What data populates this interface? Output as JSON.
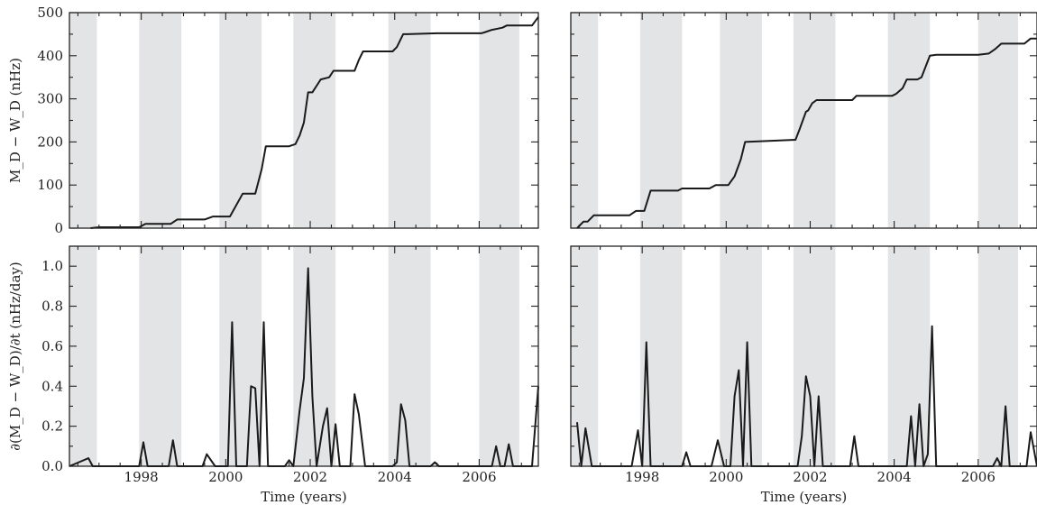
{
  "colors": {
    "band": "#e3e4e6",
    "line": "#1a1a1a",
    "frame": "#222222"
  },
  "chart_data": [
    {
      "id": "top-left",
      "type": "line",
      "xlim": [
        1996.3,
        2007.4
      ],
      "ylim": [
        0,
        500
      ],
      "xticks": [
        1998,
        2000,
        2002,
        2004,
        2006
      ],
      "show_xtick_labels": false,
      "yticks": [
        0,
        100,
        200,
        300,
        400,
        500
      ],
      "ytick_labels": [
        "0",
        "100",
        "200",
        "300",
        "400",
        "500"
      ],
      "show_ytick_labels": true,
      "xlabel": "",
      "ylabel": "M_D − W_D (nHz)",
      "bands": [
        [
          1996.3,
          1996.95
        ],
        [
          1997.95,
          1998.95
        ],
        [
          1999.85,
          2000.85
        ],
        [
          2001.6,
          2002.6
        ],
        [
          2003.85,
          2004.85
        ],
        [
          2006.0,
          2006.95
        ]
      ],
      "series": [
        {
          "x": [
            1996.8,
            1997.0,
            1997.95,
            1998.1,
            1998.7,
            1998.85,
            1999.5,
            1999.7,
            2000.05,
            2000.1,
            2000.4,
            2000.5,
            2000.7,
            2000.85,
            2000.95,
            2001.5,
            2001.65,
            2001.75,
            2001.85,
            2001.95,
            2002.05,
            2002.25,
            2002.45,
            2002.55,
            2002.65,
            2003.05,
            2003.15,
            2003.25,
            2003.95,
            2004.05,
            2004.2,
            2004.3,
            2005.0,
            2006.05,
            2006.15,
            2006.3,
            2006.55,
            2006.65,
            2007.25,
            2007.4
          ],
          "y": [
            0,
            2,
            2,
            10,
            10,
            20,
            20,
            27,
            27,
            27,
            80,
            80,
            80,
            137,
            190,
            190,
            195,
            215,
            245,
            315,
            315,
            345,
            350,
            365,
            365,
            365,
            390,
            410,
            410,
            420,
            450,
            450,
            452,
            452,
            455,
            460,
            465,
            470,
            470,
            490
          ]
        }
      ]
    },
    {
      "id": "top-right",
      "type": "line",
      "xlim": [
        1996.3,
        2007.4
      ],
      "ylim": [
        0,
        500
      ],
      "xticks": [
        1998,
        2000,
        2002,
        2004,
        2006
      ],
      "show_xtick_labels": false,
      "yticks": [
        0,
        100,
        200,
        300,
        400,
        500
      ],
      "show_ytick_labels": false,
      "xlabel": "",
      "ylabel": "",
      "bands": [
        [
          1996.3,
          1996.95
        ],
        [
          1997.95,
          1998.95
        ],
        [
          1999.85,
          2000.85
        ],
        [
          2001.6,
          2002.6
        ],
        [
          2003.85,
          2004.85
        ],
        [
          2006.0,
          2006.95
        ]
      ],
      "series": [
        {
          "x": [
            1996.45,
            1996.6,
            1996.7,
            1996.85,
            1997.7,
            1997.85,
            1998.05,
            1998.2,
            1998.85,
            1998.95,
            1999.6,
            1999.75,
            2000.05,
            2000.2,
            2000.35,
            2000.45,
            2001.65,
            2001.75,
            2001.9,
            2001.95,
            2002.05,
            2002.15,
            2003.0,
            2003.1,
            2003.95,
            2004.05,
            2004.2,
            2004.3,
            2004.55,
            2004.65,
            2004.85,
            2005.0,
            2006.0,
            2006.25,
            2006.4,
            2006.55,
            2007.1,
            2007.25,
            2007.4
          ],
          "y": [
            0,
            15,
            15,
            30,
            30,
            40,
            40,
            87,
            87,
            92,
            92,
            100,
            100,
            120,
            160,
            200,
            205,
            230,
            270,
            273,
            290,
            297,
            297,
            307,
            307,
            312,
            325,
            345,
            345,
            350,
            400,
            402,
            402,
            405,
            415,
            428,
            428,
            440,
            440
          ]
        }
      ]
    },
    {
      "id": "bottom-left",
      "type": "line",
      "xlim": [
        1996.3,
        2007.4
      ],
      "ylim": [
        0,
        1.1
      ],
      "xticks": [
        1998,
        2000,
        2002,
        2004,
        2006
      ],
      "xtick_labels": [
        "1998",
        "2000",
        "2002",
        "2004",
        "2006"
      ],
      "show_xtick_labels": true,
      "yticks": [
        0.0,
        0.2,
        0.4,
        0.6,
        0.8,
        1.0
      ],
      "ytick_labels": [
        "0.0",
        "0.2",
        "0.4",
        "0.6",
        "0.8",
        "1.0"
      ],
      "show_ytick_labels": true,
      "xlabel": "Time (years)",
      "ylabel": "∂(M_D − W_D)/∂t (nHz/day)",
      "bands": [
        [
          1996.3,
          1996.95
        ],
        [
          1997.95,
          1998.95
        ],
        [
          1999.85,
          2000.85
        ],
        [
          2001.6,
          2002.6
        ],
        [
          2003.85,
          2004.85
        ],
        [
          2006.0,
          2006.95
        ]
      ],
      "series": [
        {
          "x": [
            1996.3,
            1996.75,
            1996.85,
            1996.95,
            1997.95,
            1998.05,
            1998.15,
            1998.65,
            1998.75,
            1998.85,
            1999.45,
            1999.55,
            1999.75,
            2000.05,
            2000.15,
            2000.25,
            2000.5,
            2000.6,
            2000.7,
            2000.8,
            2000.9,
            2001.0,
            2001.4,
            2001.5,
            2001.6,
            2001.75,
            2001.85,
            2001.95,
            2002.05,
            2002.15,
            2002.3,
            2002.4,
            2002.5,
            2002.6,
            2002.7,
            2002.95,
            2003.05,
            2003.15,
            2003.3,
            2003.95,
            2004.05,
            2004.15,
            2004.25,
            2004.35,
            2004.85,
            2004.95,
            2005.05,
            2006.3,
            2006.4,
            2006.5,
            2006.6,
            2006.7,
            2006.8,
            2007.25,
            2007.4
          ],
          "y": [
            0,
            0.04,
            0,
            0,
            0,
            0.12,
            0,
            0,
            0.13,
            0,
            0,
            0.06,
            0,
            0,
            0.72,
            0,
            0,
            0.4,
            0.39,
            0,
            0.72,
            0,
            0,
            0.03,
            0,
            0.28,
            0.44,
            0.99,
            0.35,
            0,
            0.2,
            0.29,
            0,
            0.21,
            0,
            0,
            0.36,
            0.26,
            0,
            0,
            0.02,
            0.31,
            0.23,
            0,
            0,
            0.02,
            0,
            0,
            0.1,
            0,
            0,
            0.11,
            0,
            0,
            0.4
          ]
        }
      ]
    },
    {
      "id": "bottom-right",
      "type": "line",
      "xlim": [
        1996.3,
        2007.4
      ],
      "ylim": [
        0,
        1.1
      ],
      "xticks": [
        1998,
        2000,
        2002,
        2004,
        2006
      ],
      "xtick_labels": [
        "1998",
        "2000",
        "2002",
        "2004",
        "2006"
      ],
      "show_xtick_labels": true,
      "yticks": [
        0.0,
        0.2,
        0.4,
        0.6,
        0.8,
        1.0
      ],
      "show_ytick_labels": false,
      "xlabel": "Time (years)",
      "ylabel": "",
      "bands": [
        [
          1996.3,
          1996.95
        ],
        [
          1997.95,
          1998.95
        ],
        [
          1999.85,
          2000.85
        ],
        [
          2001.6,
          2002.6
        ],
        [
          2003.85,
          2004.85
        ],
        [
          2006.0,
          2006.95
        ]
      ],
      "series": [
        {
          "x": [
            1996.45,
            1996.55,
            1996.65,
            1996.8,
            1997.75,
            1997.9,
            1998.0,
            1998.1,
            1998.2,
            1998.3,
            1998.95,
            1999.05,
            1999.15,
            1999.65,
            1999.8,
            1999.95,
            2000.1,
            2000.2,
            2000.3,
            2000.4,
            2000.5,
            2000.6,
            2001.7,
            2001.8,
            2001.9,
            2002.0,
            2002.1,
            2002.2,
            2002.3,
            2002.95,
            2003.05,
            2003.15,
            2004.3,
            2004.4,
            2004.5,
            2004.6,
            2004.7,
            2004.8,
            2004.9,
            2005.0,
            2006.35,
            2006.45,
            2006.55,
            2006.65,
            2006.75,
            2007.15,
            2007.25,
            2007.4
          ],
          "y": [
            0.22,
            0,
            0.19,
            0,
            0,
            0.18,
            0,
            0.62,
            0,
            0,
            0,
            0.07,
            0,
            0,
            0.13,
            0,
            0,
            0.35,
            0.48,
            0,
            0.62,
            0,
            0,
            0.15,
            0.45,
            0.35,
            0,
            0.35,
            0,
            0,
            0.15,
            0,
            0,
            0.25,
            0,
            0.31,
            0,
            0.06,
            0.7,
            0,
            0,
            0.04,
            0,
            0.3,
            0,
            0,
            0.17,
            0
          ]
        }
      ]
    }
  ]
}
